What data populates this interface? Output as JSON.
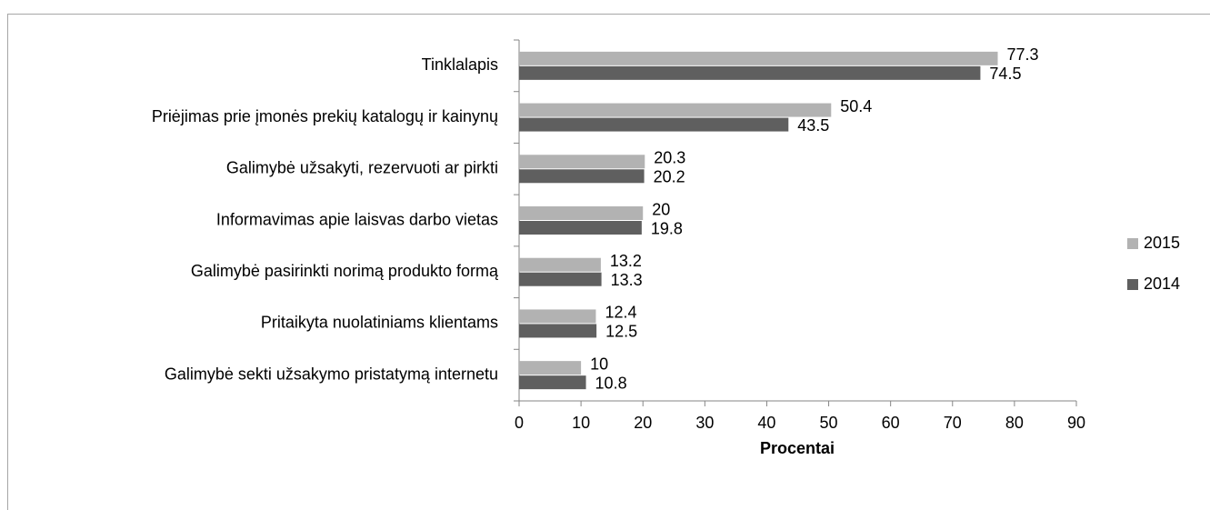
{
  "chart_data": {
    "type": "hbar",
    "x_label": "Procentai",
    "categories": [
      "Tinklalapis",
      "Priėjimas prie įmonės prekių katalogų ir kainynų",
      "Galimybė užsakyti, rezervuoti ar pirkti",
      "Informavimas apie laisvas darbo vietas",
      "Galimybė pasirinkti norimą produkto formą",
      "Pritaikyta nuolatiniams klientams",
      "Galimybė sekti užsakymo pristatymą internetu"
    ],
    "series": [
      {
        "name": "2015",
        "color": "#b2b2b2",
        "values": [
          77.3,
          50.4,
          20.3,
          20,
          13.2,
          12.4,
          10
        ]
      },
      {
        "name": "2014",
        "color": "#5f5f5f",
        "values": [
          74.5,
          43.5,
          20.2,
          19.8,
          13.3,
          12.5,
          10.8
        ]
      }
    ],
    "xlim": [
      0,
      90
    ],
    "xticks": [
      0,
      10,
      20,
      30,
      40,
      50,
      60,
      70,
      80,
      90
    ],
    "legend": "right"
  }
}
